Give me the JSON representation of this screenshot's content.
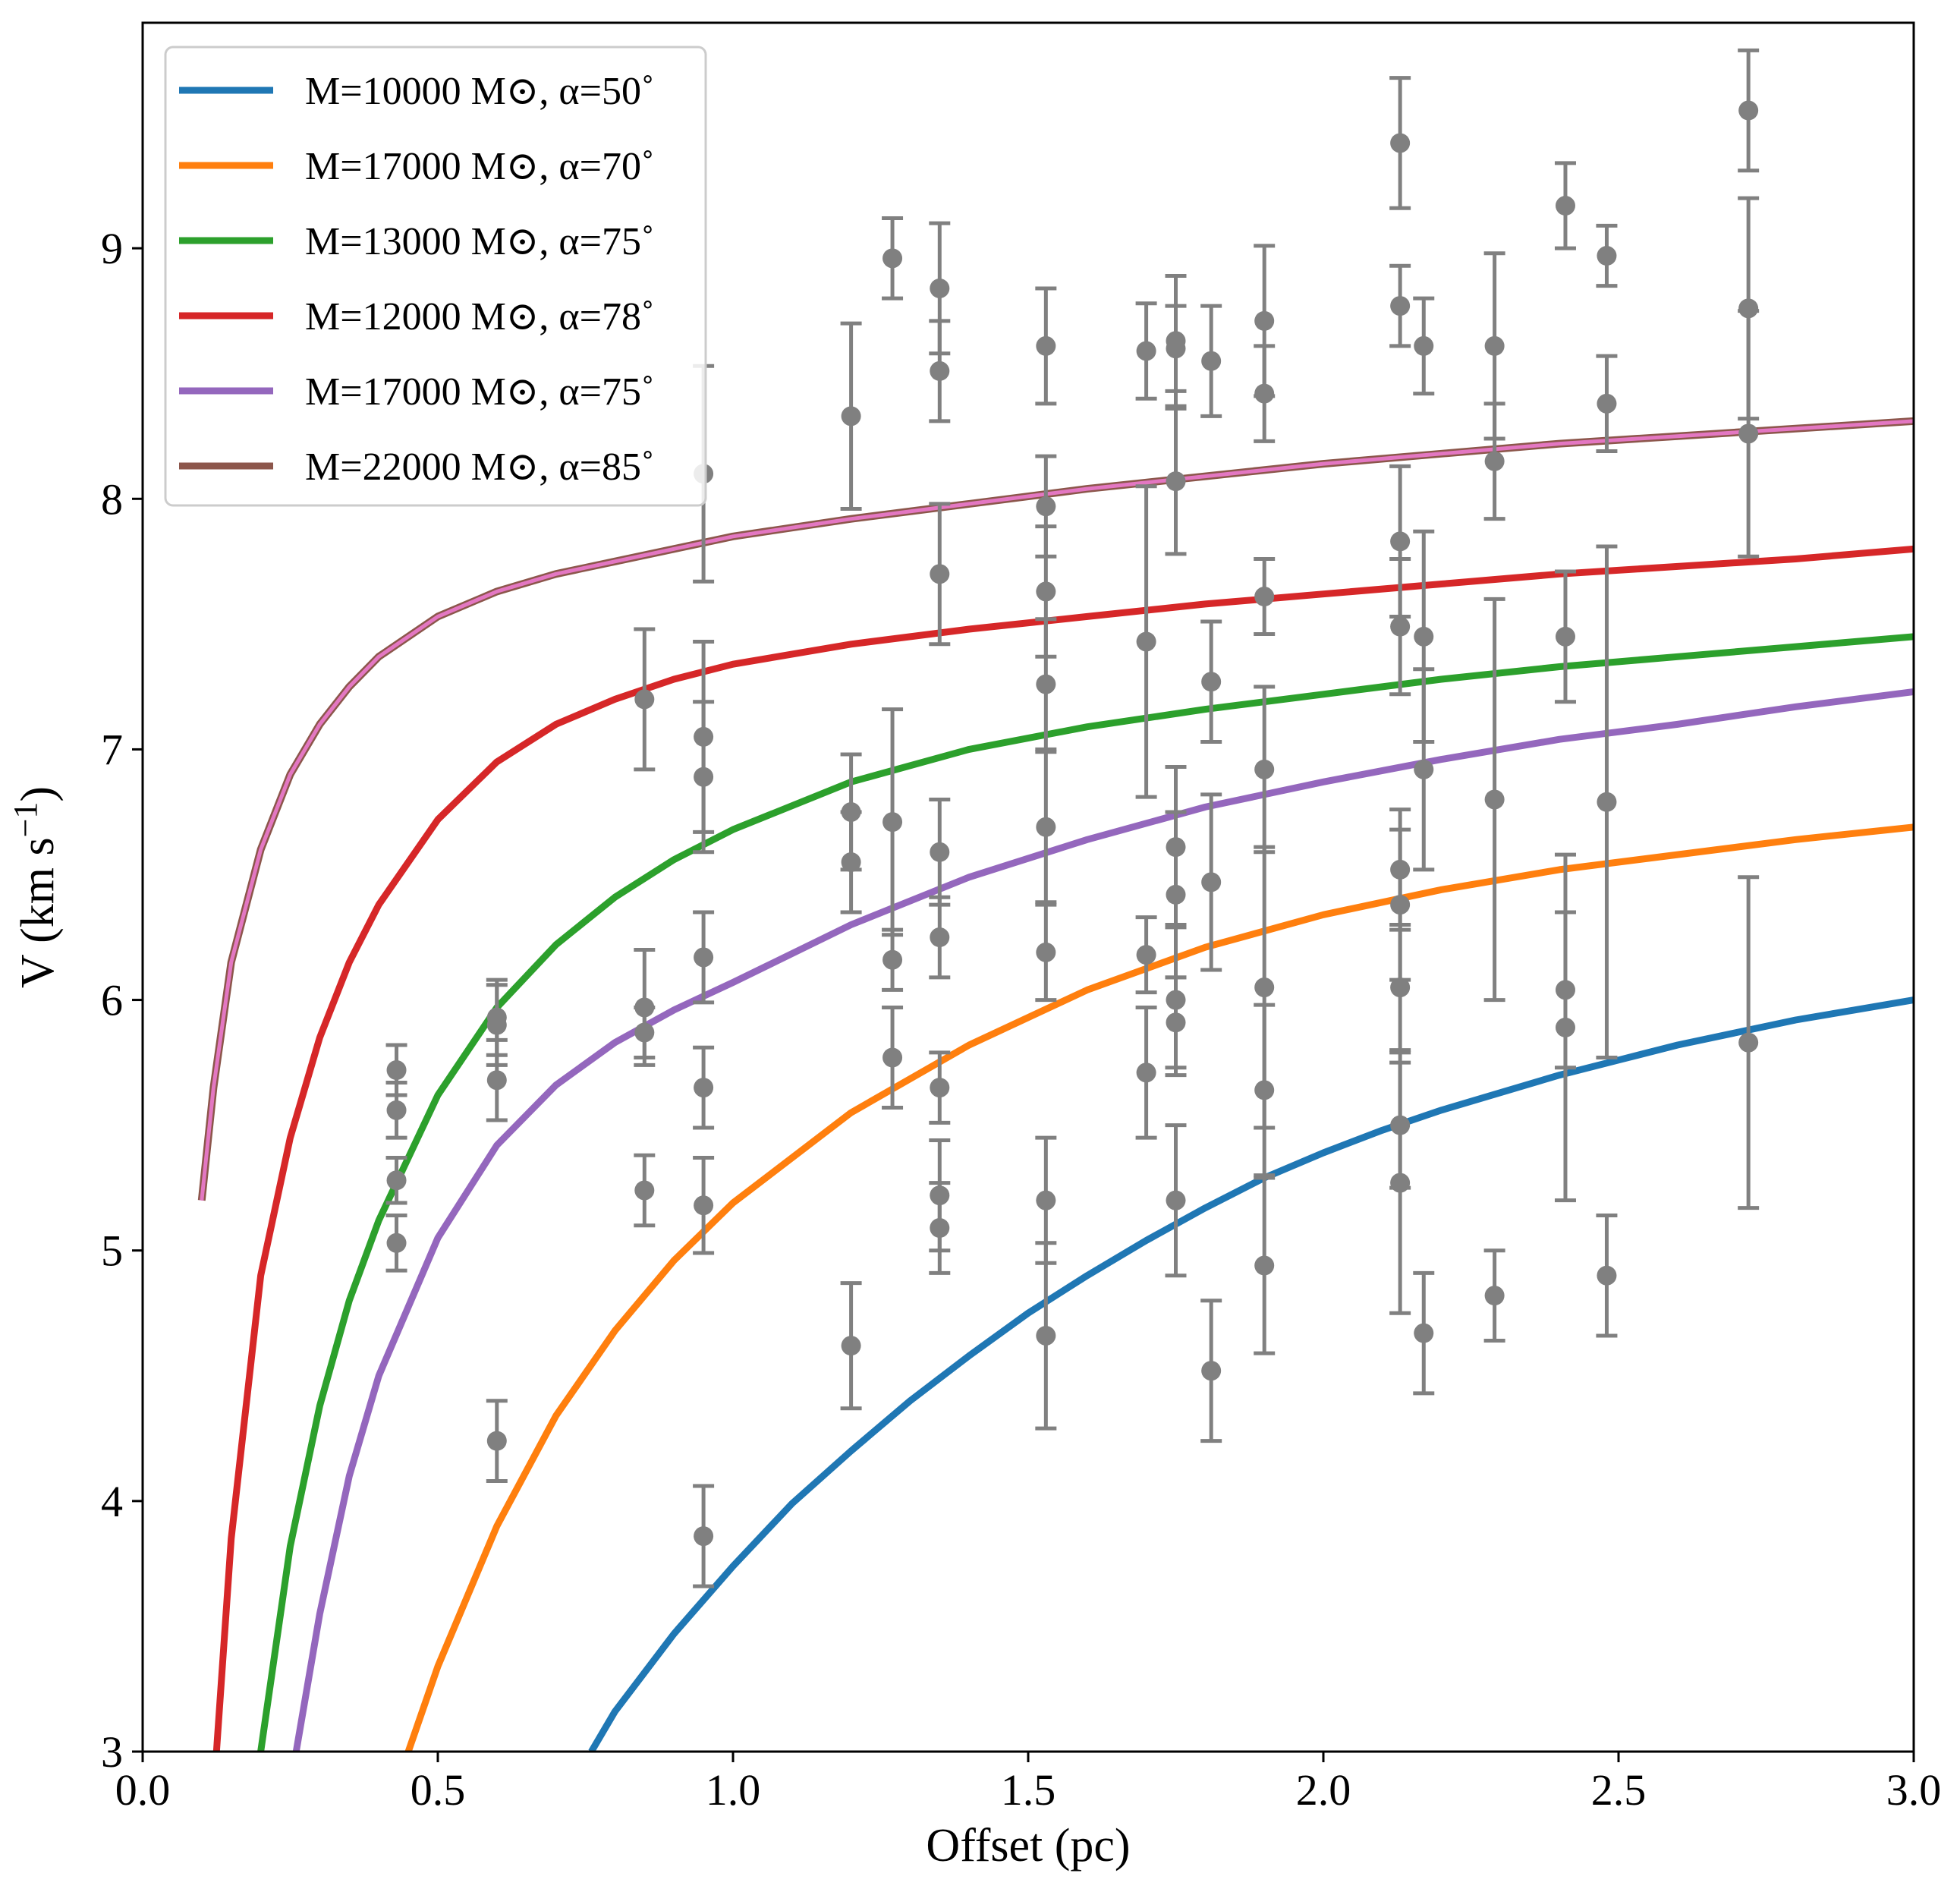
{
  "chart_data": {
    "type": "line",
    "title": "",
    "xlabel": "Offset (pc)",
    "ylabel": "V (km s",
    "ylabel_superscript": "−1",
    "ylabel_close": ")",
    "xlim": [
      0.0,
      3.0
    ],
    "ylim": [
      3.0,
      9.9
    ],
    "xticks": [
      0.0,
      0.5,
      1.0,
      1.5,
      2.0,
      2.5,
      3.0
    ],
    "xtick_labels": [
      "0.0",
      "0.5",
      "1.0",
      "1.5",
      "2.0",
      "2.5",
      "3.0"
    ],
    "yticks": [
      3,
      4,
      5,
      6,
      7,
      8,
      9
    ],
    "ytick_labels": [
      "3",
      "4",
      "5",
      "6",
      "7",
      "8",
      "9"
    ],
    "grid": false,
    "legend_position": "top-left",
    "series": [
      {
        "name": "M=10000 M⊙, α=50˚",
        "color": "#1f77b4",
        "x": [
          0.76,
          0.8,
          0.9,
          1.0,
          1.1,
          1.2,
          1.3,
          1.4,
          1.5,
          1.6,
          1.7,
          1.8,
          1.9,
          2.0,
          2.1,
          2.2,
          2.3,
          2.4,
          2.5,
          2.6,
          2.7,
          2.8,
          2.9,
          3.0
        ],
        "y": [
          3.0,
          3.16,
          3.47,
          3.74,
          3.99,
          4.2,
          4.4,
          4.58,
          4.75,
          4.9,
          5.04,
          5.17,
          5.29,
          5.39,
          5.48,
          5.56,
          5.63,
          5.7,
          5.76,
          5.82,
          5.87,
          5.92,
          5.96,
          6.0
        ]
      },
      {
        "name": "M=17000 M⊙, α=70˚",
        "color": "#ff7f0e",
        "x": [
          0.45,
          0.5,
          0.6,
          0.7,
          0.8,
          0.9,
          1.0,
          1.2,
          1.4,
          1.6,
          1.8,
          2.0,
          2.2,
          2.4,
          2.6,
          2.8,
          3.0
        ],
        "y": [
          3.0,
          3.34,
          3.9,
          4.34,
          4.68,
          4.96,
          5.19,
          5.55,
          5.82,
          6.04,
          6.21,
          6.34,
          6.44,
          6.52,
          6.58,
          6.64,
          6.69
        ]
      },
      {
        "name": "M=13000 M⊙, α=75˚",
        "color": "#2ca02c",
        "x": [
          0.2,
          0.25,
          0.3,
          0.35,
          0.4,
          0.5,
          0.6,
          0.7,
          0.8,
          0.9,
          1.0,
          1.2,
          1.4,
          1.6,
          1.8,
          2.0,
          2.2,
          2.4,
          2.6,
          2.8,
          3.0
        ],
        "y": [
          3.0,
          3.82,
          4.38,
          4.8,
          5.12,
          5.62,
          5.97,
          6.22,
          6.41,
          6.56,
          6.68,
          6.87,
          7.0,
          7.09,
          7.16,
          7.22,
          7.28,
          7.33,
          7.37,
          7.41,
          7.45
        ]
      },
      {
        "name": "M=12000 M⊙, α=78˚",
        "color": "#d62728",
        "x": [
          0.125,
          0.15,
          0.2,
          0.25,
          0.3,
          0.35,
          0.4,
          0.5,
          0.6,
          0.7,
          0.8,
          0.9,
          1.0,
          1.2,
          1.4,
          1.6,
          1.8,
          2.0,
          2.2,
          2.4,
          2.6,
          2.8,
          3.0
        ],
        "y": [
          3.0,
          3.85,
          4.9,
          5.45,
          5.85,
          6.15,
          6.38,
          6.72,
          6.95,
          7.1,
          7.2,
          7.28,
          7.34,
          7.42,
          7.48,
          7.53,
          7.58,
          7.62,
          7.66,
          7.7,
          7.73,
          7.76,
          7.8
        ]
      },
      {
        "name": "M=17000 M⊙, α=75˚",
        "color": "#9467bd",
        "x": [
          0.26,
          0.3,
          0.35,
          0.4,
          0.5,
          0.6,
          0.7,
          0.8,
          0.9,
          1.0,
          1.2,
          1.4,
          1.6,
          1.8,
          2.0,
          2.2,
          2.4,
          2.6,
          2.8,
          3.0
        ],
        "y": [
          3.0,
          3.55,
          4.1,
          4.5,
          5.05,
          5.42,
          5.66,
          5.83,
          5.96,
          6.07,
          6.3,
          6.49,
          6.64,
          6.77,
          6.87,
          6.96,
          7.04,
          7.1,
          7.17,
          7.23
        ]
      },
      {
        "name": "M=22000 M⊙, α=85˚",
        "color": "#8c564b",
        "overlay_color": "#e377c2",
        "x": [
          0.1,
          0.12,
          0.15,
          0.2,
          0.25,
          0.3,
          0.35,
          0.4,
          0.5,
          0.6,
          0.7,
          0.8,
          0.9,
          1.0,
          1.2,
          1.4,
          1.6,
          1.8,
          2.0,
          2.2,
          2.4,
          2.6,
          2.8,
          3.0
        ],
        "y": [
          5.2,
          5.65,
          6.15,
          6.6,
          6.9,
          7.1,
          7.25,
          7.37,
          7.53,
          7.63,
          7.7,
          7.75,
          7.8,
          7.85,
          7.92,
          7.98,
          8.04,
          8.09,
          8.14,
          8.18,
          8.22,
          8.25,
          8.28,
          8.31
        ]
      }
    ],
    "points": {
      "name": "",
      "color": "#808080",
      "data": [
        [
          0.43,
          5.72,
          0.1
        ],
        [
          0.43,
          5.56,
          0.11
        ],
        [
          0.43,
          5.28,
          0.09
        ],
        [
          0.43,
          5.03,
          0.11
        ],
        [
          0.6,
          5.93,
          0.15
        ],
        [
          0.6,
          5.9,
          0.16
        ],
        [
          0.6,
          5.68,
          0.16
        ],
        [
          0.6,
          4.24,
          0.16
        ],
        [
          0.85,
          7.2,
          0.28
        ],
        [
          0.85,
          5.97,
          0.23
        ],
        [
          0.85,
          5.87,
          0.1
        ],
        [
          0.85,
          5.24,
          0.14
        ],
        [
          0.95,
          8.1,
          0.43
        ],
        [
          0.95,
          7.05,
          0.38
        ],
        [
          0.95,
          6.89,
          0.3
        ],
        [
          0.95,
          6.17,
          0.18
        ],
        [
          0.95,
          5.65,
          0.16
        ],
        [
          0.95,
          5.18,
          0.19
        ],
        [
          0.95,
          3.86,
          0.2
        ],
        [
          1.2,
          8.33,
          0.37
        ],
        [
          1.2,
          6.75,
          0.23
        ],
        [
          1.2,
          6.55,
          0.2
        ],
        [
          1.2,
          4.62,
          0.25
        ],
        [
          1.27,
          8.96,
          0.16
        ],
        [
          1.27,
          6.71,
          0.45
        ],
        [
          1.27,
          6.16,
          0.12
        ],
        [
          1.27,
          5.77,
          0.2
        ],
        [
          1.35,
          8.84,
          0.26
        ],
        [
          1.35,
          8.51,
          0.2
        ],
        [
          1.35,
          7.7,
          0.28
        ],
        [
          1.35,
          6.59,
          0.21
        ],
        [
          1.35,
          6.25,
          0.16
        ],
        [
          1.35,
          5.65,
          0.14
        ],
        [
          1.35,
          5.22,
          0.22
        ],
        [
          1.35,
          5.09,
          0.18
        ],
        [
          1.53,
          8.61,
          0.23
        ],
        [
          1.53,
          7.97,
          0.2
        ],
        [
          1.53,
          7.63,
          0.26
        ],
        [
          1.53,
          7.26,
          0.26
        ],
        [
          1.53,
          6.69,
          0.3
        ],
        [
          1.53,
          6.19,
          0.19
        ],
        [
          1.53,
          5.2,
          0.25
        ],
        [
          1.53,
          4.66,
          0.37
        ],
        [
          1.7,
          8.59,
          0.19
        ],
        [
          1.7,
          7.43,
          0.62
        ],
        [
          1.7,
          6.18,
          0.15
        ],
        [
          1.7,
          5.71,
          0.26
        ],
        [
          1.75,
          8.63,
          0.26
        ],
        [
          1.75,
          8.6,
          0.17
        ],
        [
          1.75,
          8.07,
          0.29
        ],
        [
          1.75,
          6.61,
          0.32
        ],
        [
          1.75,
          6.42,
          0.33
        ],
        [
          1.75,
          6.0,
          0.3
        ],
        [
          1.75,
          5.91,
          0.18
        ],
        [
          1.75,
          5.2,
          0.3
        ],
        [
          1.81,
          8.55,
          0.22
        ],
        [
          1.81,
          7.27,
          0.24
        ],
        [
          1.81,
          6.47,
          0.35
        ],
        [
          1.81,
          4.52,
          0.28
        ],
        [
          1.9,
          8.71,
          0.3
        ],
        [
          1.9,
          8.42,
          0.19
        ],
        [
          1.9,
          7.61,
          0.15
        ],
        [
          1.9,
          6.92,
          0.33
        ],
        [
          1.9,
          6.05,
          0.56
        ],
        [
          1.9,
          5.64,
          0.34
        ],
        [
          1.9,
          4.94,
          0.35
        ],
        [
          2.13,
          9.42,
          0.26
        ],
        [
          2.13,
          8.77,
          0.16
        ],
        [
          2.13,
          7.83,
          0.3
        ],
        [
          2.13,
          7.49,
          0.27
        ],
        [
          2.13,
          6.52,
          0.24
        ],
        [
          2.13,
          6.38,
          0.3
        ],
        [
          2.13,
          6.05,
          0.25
        ],
        [
          2.13,
          5.5,
          0.25
        ],
        [
          2.13,
          5.27,
          0.52
        ],
        [
          2.17,
          8.61,
          0.19
        ],
        [
          2.17,
          7.45,
          0.42
        ],
        [
          2.17,
          6.92,
          0.4
        ],
        [
          2.17,
          4.67,
          0.24
        ],
        [
          2.29,
          8.61,
          0.37
        ],
        [
          2.29,
          8.15,
          0.23
        ],
        [
          2.29,
          6.8,
          0.8
        ],
        [
          2.29,
          4.82,
          0.18
        ],
        [
          2.41,
          9.17,
          0.17
        ],
        [
          2.41,
          7.45,
          0.26
        ],
        [
          2.41,
          6.04,
          0.31
        ],
        [
          2.41,
          5.89,
          0.69
        ],
        [
          2.48,
          8.97,
          0.12
        ],
        [
          2.48,
          8.38,
          0.19
        ],
        [
          2.48,
          6.79,
          1.02
        ],
        [
          2.48,
          4.9,
          0.24
        ],
        [
          2.72,
          9.55,
          0.24
        ],
        [
          2.72,
          8.76,
          0.44
        ],
        [
          2.72,
          8.26,
          0.49
        ],
        [
          2.72,
          5.83,
          0.66
        ]
      ]
    }
  }
}
